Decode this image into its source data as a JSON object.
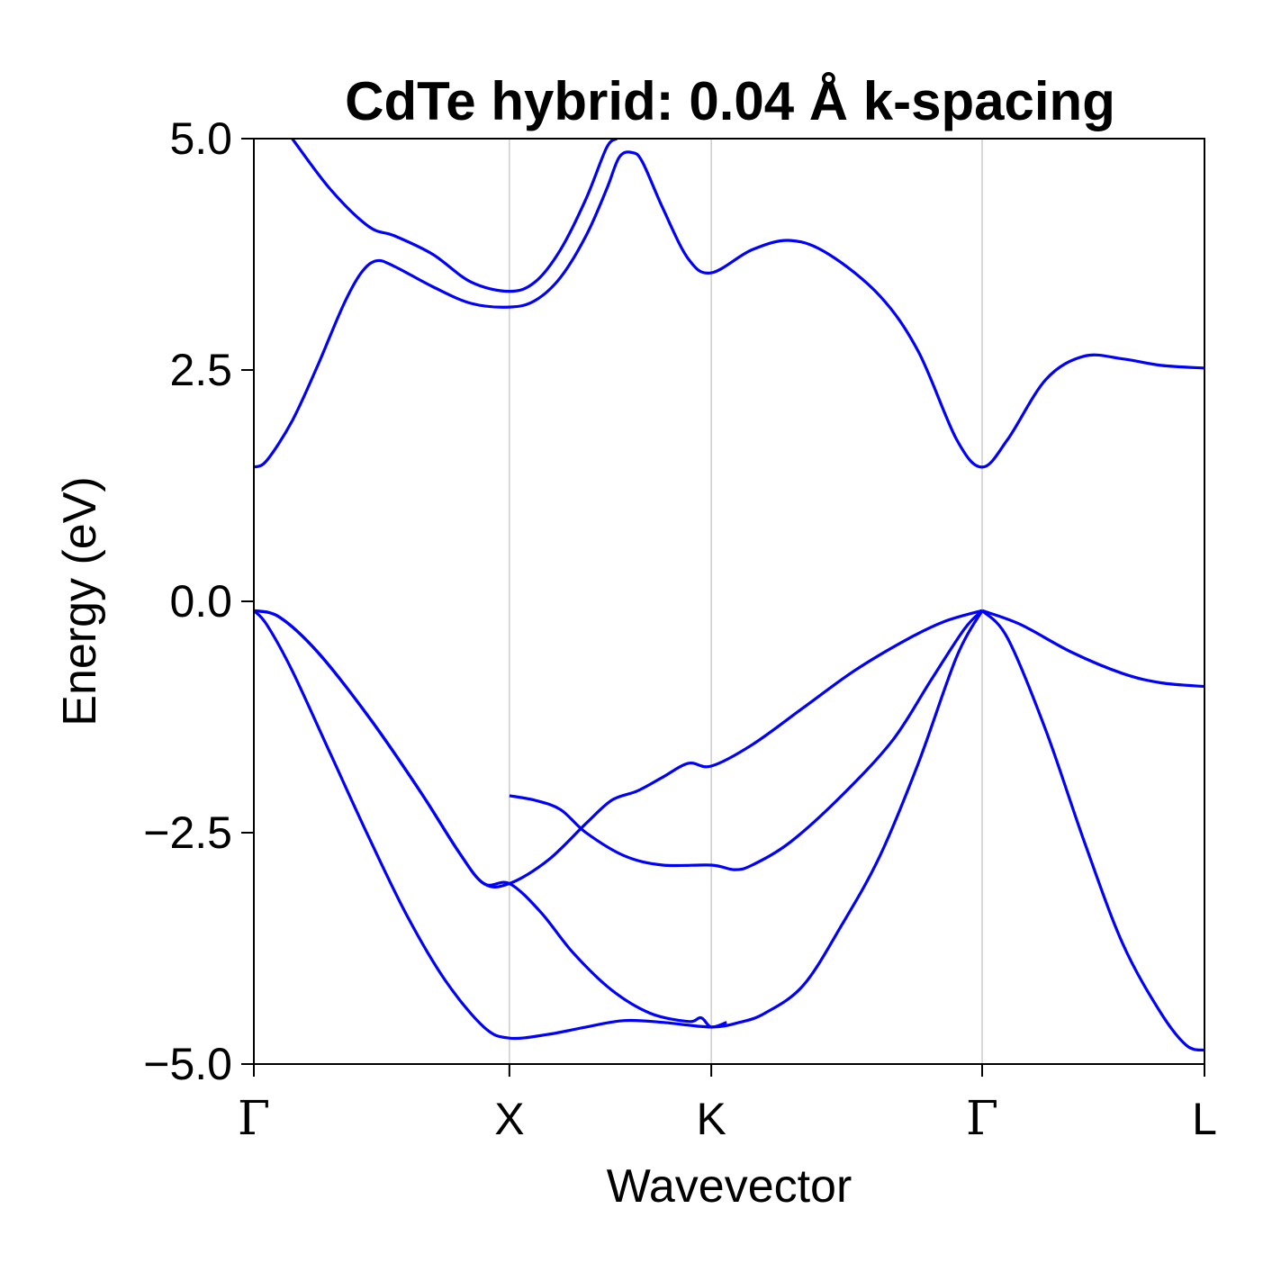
{
  "chart_data": {
    "type": "line",
    "title": "CdTe hybrid: 0.04 Å k-spacing",
    "xlabel": "Wavevector",
    "ylabel": "Energy (eV)",
    "ylim": [
      -5.0,
      5.0
    ],
    "yticks": [
      {
        "value": 5.0,
        "label": "5.0"
      },
      {
        "value": 2.5,
        "label": "2.5"
      },
      {
        "value": 0.0,
        "label": "0.0"
      },
      {
        "value": -2.5,
        "label": "−2.5"
      },
      {
        "value": -5.0,
        "label": "−5.0"
      }
    ],
    "high_symmetry_points": [
      {
        "label": "Γ",
        "k": 0.0
      },
      {
        "label": "X",
        "k": 1.0
      },
      {
        "label": "K",
        "k": 1.79
      },
      {
        "label": "Γ",
        "k": 2.85
      },
      {
        "label": "L",
        "k": 3.72
      }
    ],
    "line_color": "#0000ff",
    "gridline_color": "#cccccc",
    "series": [
      {
        "values": [
          [
            0,
            -0.1
          ],
          [
            0.1,
            -0.17
          ],
          [
            0.25,
            -0.55
          ],
          [
            0.45,
            -1.25
          ],
          [
            0.65,
            -2.05
          ],
          [
            0.8,
            -2.7
          ],
          [
            0.9,
            -3.05
          ],
          [
            1.0,
            -3.05
          ],
          [
            1.15,
            -2.8
          ],
          [
            1.3,
            -2.4
          ],
          [
            1.4,
            -2.15
          ],
          [
            1.5,
            -2.05
          ],
          [
            1.6,
            -1.9
          ],
          [
            1.7,
            -1.75
          ],
          [
            1.79,
            -1.78
          ],
          [
            1.95,
            -1.55
          ],
          [
            2.15,
            -1.15
          ],
          [
            2.35,
            -0.75
          ],
          [
            2.55,
            -0.42
          ],
          [
            2.7,
            -0.22
          ],
          [
            2.85,
            -0.1
          ]
        ]
      },
      {
        "values": [
          [
            0,
            -0.1
          ],
          [
            0.1,
            -0.17
          ],
          [
            0.25,
            -0.55
          ],
          [
            0.45,
            -1.25
          ],
          [
            0.65,
            -2.05
          ],
          [
            0.8,
            -2.7
          ],
          [
            0.9,
            -3.05
          ],
          [
            1.0,
            -3.05
          ],
          [
            1.12,
            -3.35
          ],
          [
            1.25,
            -3.8
          ],
          [
            1.4,
            -4.2
          ],
          [
            1.55,
            -4.45
          ],
          [
            1.7,
            -4.54
          ],
          [
            1.75,
            -4.5
          ],
          [
            1.79,
            -4.6
          ],
          [
            1.85,
            -4.55
          ]
        ]
      },
      {
        "values": [
          [
            0,
            -0.1
          ],
          [
            0.05,
            -0.25
          ],
          [
            0.15,
            -0.75
          ],
          [
            0.3,
            -1.65
          ],
          [
            0.45,
            -2.55
          ],
          [
            0.6,
            -3.4
          ],
          [
            0.75,
            -4.1
          ],
          [
            0.9,
            -4.6
          ],
          [
            1.0,
            -4.72
          ],
          [
            1.15,
            -4.68
          ],
          [
            1.3,
            -4.6
          ],
          [
            1.45,
            -4.53
          ],
          [
            1.6,
            -4.55
          ],
          [
            1.79,
            -4.6
          ],
          [
            1.9,
            -4.55
          ],
          [
            2.0,
            -4.45
          ],
          [
            2.15,
            -4.15
          ],
          [
            2.3,
            -3.5
          ],
          [
            2.45,
            -2.75
          ],
          [
            2.6,
            -1.75
          ],
          [
            2.75,
            -0.6
          ],
          [
            2.85,
            -0.1
          ]
        ]
      },
      {
        "values": [
          [
            1.0,
            -2.1
          ],
          [
            1.1,
            -2.15
          ],
          [
            1.2,
            -2.25
          ],
          [
            1.3,
            -2.5
          ],
          [
            1.45,
            -2.75
          ],
          [
            1.6,
            -2.85
          ],
          [
            1.79,
            -2.85
          ],
          [
            1.88,
            -2.9
          ],
          [
            1.95,
            -2.85
          ],
          [
            2.1,
            -2.6
          ],
          [
            2.3,
            -2.1
          ],
          [
            2.5,
            -1.5
          ],
          [
            2.65,
            -0.85
          ],
          [
            2.78,
            -0.3
          ],
          [
            2.85,
            -0.1
          ]
        ]
      },
      {
        "values": [
          [
            2.85,
            -0.1
          ],
          [
            3.0,
            -0.25
          ],
          [
            3.2,
            -0.55
          ],
          [
            3.4,
            -0.78
          ],
          [
            3.55,
            -0.88
          ],
          [
            3.72,
            -0.92
          ]
        ]
      },
      {
        "values": [
          [
            2.85,
            -0.1
          ],
          [
            2.95,
            -0.4
          ],
          [
            3.1,
            -1.4
          ],
          [
            3.25,
            -2.6
          ],
          [
            3.4,
            -3.7
          ],
          [
            3.55,
            -4.45
          ],
          [
            3.65,
            -4.8
          ],
          [
            3.72,
            -4.85
          ]
        ]
      },
      {
        "values": [
          [
            0,
            1.45
          ],
          [
            0.05,
            1.52
          ],
          [
            0.15,
            1.95
          ],
          [
            0.25,
            2.55
          ],
          [
            0.35,
            3.2
          ],
          [
            0.42,
            3.55
          ],
          [
            0.48,
            3.68
          ],
          [
            0.55,
            3.62
          ],
          [
            0.7,
            3.4
          ],
          [
            0.85,
            3.22
          ],
          [
            1.0,
            3.18
          ],
          [
            1.1,
            3.25
          ],
          [
            1.2,
            3.5
          ],
          [
            1.3,
            3.95
          ],
          [
            1.38,
            4.45
          ],
          [
            1.43,
            4.8
          ],
          [
            1.48,
            4.85
          ],
          [
            1.52,
            4.75
          ],
          [
            1.6,
            4.25
          ],
          [
            1.7,
            3.7
          ],
          [
            1.79,
            3.55
          ],
          [
            1.95,
            3.8
          ],
          [
            2.1,
            3.9
          ],
          [
            2.25,
            3.75
          ],
          [
            2.45,
            3.3
          ],
          [
            2.6,
            2.7
          ],
          [
            2.75,
            1.75
          ],
          [
            2.85,
            1.45
          ],
          [
            2.95,
            1.75
          ],
          [
            3.1,
            2.4
          ],
          [
            3.25,
            2.65
          ],
          [
            3.4,
            2.62
          ],
          [
            3.55,
            2.55
          ],
          [
            3.72,
            2.52
          ]
        ]
      },
      {
        "values": [
          [
            0.15,
            5.0
          ],
          [
            0.3,
            4.45
          ],
          [
            0.45,
            4.05
          ],
          [
            0.55,
            3.95
          ],
          [
            0.7,
            3.75
          ],
          [
            0.85,
            3.45
          ],
          [
            1.0,
            3.35
          ],
          [
            1.1,
            3.45
          ],
          [
            1.2,
            3.8
          ],
          [
            1.3,
            4.35
          ],
          [
            1.38,
            4.9
          ],
          [
            1.42,
            5.0
          ]
        ]
      }
    ]
  }
}
